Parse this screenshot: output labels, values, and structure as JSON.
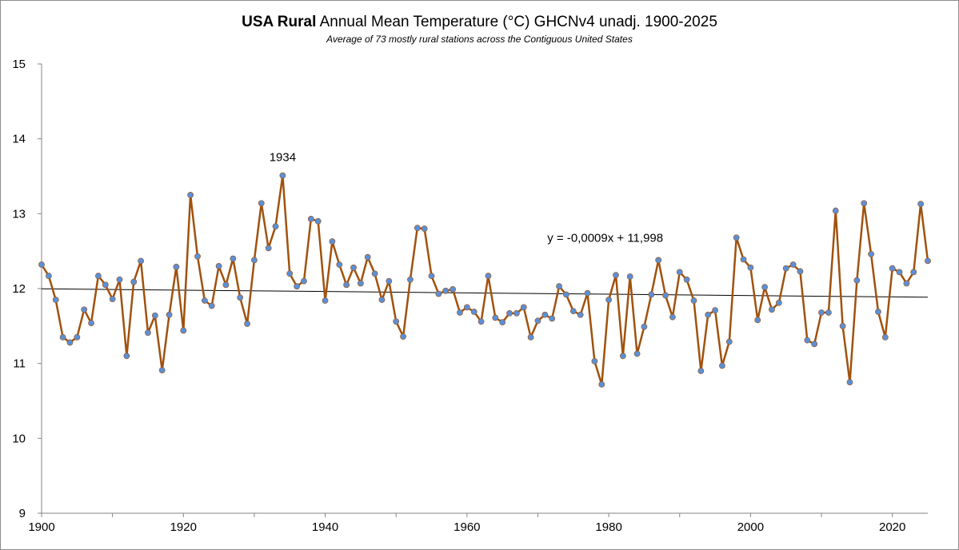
{
  "chart_data": {
    "type": "line",
    "title_bold": "USA Rural",
    "title_rest": " Annual Mean Temperature (°C) GHCNv4 unadj. 1900-2025",
    "subtitle": "Average of  73 mostly rural stations across the Contiguous United States",
    "xlim": [
      1900,
      2025
    ],
    "ylim": [
      9,
      15
    ],
    "y_ticks": [
      9,
      10,
      11,
      12,
      13,
      14,
      15
    ],
    "x_ticks": [
      1900,
      1920,
      1940,
      1960,
      1980,
      2000,
      2020
    ],
    "grid": false,
    "legend": "none",
    "series": [
      {
        "color": "#a0520e",
        "marker_color": "#5b8fd6",
        "x": [
          1900,
          1901,
          1902,
          1903,
          1904,
          1905,
          1906,
          1907,
          1908,
          1909,
          1910,
          1911,
          1912,
          1913,
          1914,
          1915,
          1916,
          1917,
          1918,
          1919,
          1920,
          1921,
          1922,
          1923,
          1924,
          1925,
          1926,
          1927,
          1928,
          1929,
          1930,
          1931,
          1932,
          1933,
          1934,
          1935,
          1936,
          1937,
          1938,
          1939,
          1940,
          1941,
          1942,
          1943,
          1944,
          1945,
          1946,
          1947,
          1948,
          1949,
          1950,
          1951,
          1952,
          1953,
          1954,
          1955,
          1956,
          1957,
          1958,
          1959,
          1960,
          1961,
          1962,
          1963,
          1964,
          1965,
          1966,
          1967,
          1968,
          1969,
          1970,
          1971,
          1972,
          1973,
          1974,
          1975,
          1976,
          1977,
          1978,
          1979,
          1980,
          1981,
          1982,
          1983,
          1984,
          1985,
          1986,
          1987,
          1988,
          1989,
          1990,
          1991,
          1992,
          1993,
          1994,
          1995,
          1996,
          1997,
          1998,
          1999,
          2000,
          2001,
          2002,
          2003,
          2004,
          2005,
          2006,
          2007,
          2008,
          2009,
          2010,
          2011,
          2012,
          2013,
          2014,
          2015,
          2016,
          2017,
          2018,
          2019,
          2020,
          2021,
          2022,
          2023,
          2024,
          2025
        ],
        "values": [
          12.32,
          12.17,
          11.85,
          11.35,
          11.28,
          11.35,
          11.72,
          11.54,
          12.17,
          12.05,
          11.86,
          12.12,
          11.1,
          12.09,
          12.37,
          11.41,
          11.64,
          10.91,
          11.65,
          12.29,
          11.44,
          13.25,
          12.43,
          11.84,
          11.77,
          12.3,
          12.05,
          12.4,
          11.88,
          11.53,
          12.38,
          13.14,
          12.54,
          12.83,
          13.51,
          12.2,
          12.03,
          12.1,
          12.93,
          12.9,
          11.84,
          12.63,
          12.32,
          12.05,
          12.28,
          12.07,
          12.42,
          12.2,
          11.85,
          12.1,
          11.56,
          11.36,
          12.12,
          12.81,
          12.8,
          12.17,
          11.93,
          11.97,
          11.99,
          11.68,
          11.75,
          11.69,
          11.56,
          12.17,
          11.61,
          11.55,
          11.67,
          11.67,
          11.75,
          11.35,
          11.57,
          11.65,
          11.6,
          12.03,
          11.92,
          11.7,
          11.65,
          11.94,
          11.03,
          10.72,
          11.85,
          12.18,
          11.1,
          12.16,
          11.13,
          11.49,
          11.92,
          12.38,
          11.91,
          11.62,
          12.22,
          12.12,
          11.84,
          10.9,
          11.65,
          11.71,
          10.97,
          11.29,
          12.68,
          12.39,
          12.28,
          11.58,
          12.02,
          11.72,
          11.81,
          12.27,
          12.32,
          12.23,
          11.31,
          11.26,
          11.68,
          11.68,
          13.04,
          11.5,
          10.75,
          12.11,
          13.14,
          12.46,
          11.69,
          11.35,
          12.27,
          12.22,
          12.07,
          12.22,
          13.13,
          12.37
        ]
      }
    ],
    "trendline": {
      "label": "y = -0,0009x + 11,998",
      "slope": -0.0009,
      "intercept": 11.998,
      "color": "#000000"
    },
    "annotations": [
      {
        "text": "1934",
        "x": 1934,
        "y": 13.51
      }
    ]
  }
}
